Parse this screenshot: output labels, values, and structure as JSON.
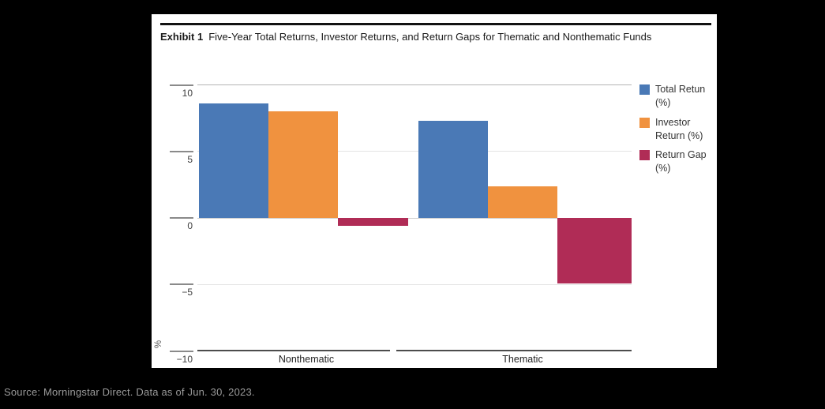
{
  "page": {
    "background": "#000000",
    "panel_background": "#ffffff"
  },
  "header": {
    "exhibit_label": "Exhibit 1",
    "title": "Five-Year Total Returns, Investor Returns, and Return Gaps for Thematic and Nonthematic Funds"
  },
  "source": {
    "text": "Source: Morningstar Direct. Data as of Jun. 30, 2023."
  },
  "chart_data": {
    "type": "bar",
    "categories": [
      "Nonthematic",
      "Thematic"
    ],
    "series": [
      {
        "name": "Total Retun (%)",
        "label_lines": [
          "Total Retun",
          "(%)"
        ],
        "color": "#4a79b6",
        "values": [
          8.6,
          7.3
        ]
      },
      {
        "name": "Investor Return (%)",
        "label_lines": [
          "Investor",
          "Return (%)"
        ],
        "color": "#f0923f",
        "values": [
          8.0,
          2.4
        ]
      },
      {
        "name": "Return Gap (%)",
        "label_lines": [
          "Return Gap",
          "(%)"
        ],
        "color": "#b02c56",
        "values": [
          -0.6,
          -4.9
        ]
      }
    ],
    "ylabel": "%",
    "ylim": [
      -10,
      10
    ],
    "yticks": [
      10,
      5,
      0,
      -5,
      -10
    ],
    "grid": true,
    "legend_position": "right",
    "axis_colors": {
      "gridline_top": "#b3b3b3",
      "gridline_mid": "#e4e4e4",
      "gridline_zero": "#cfcfcf",
      "axis": "#4c4c4c",
      "tick": "#8a8a8a"
    }
  }
}
